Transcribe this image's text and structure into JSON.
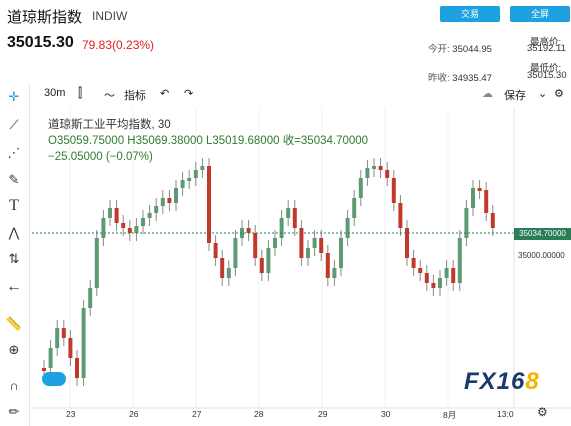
{
  "header": {
    "title": "道琼斯指数",
    "code": "INDIW",
    "trade_button": "交易",
    "fullscreen_button": "全屏",
    "price": "35015.30",
    "change": "79.83(0.23%)",
    "stats": {
      "open_label": "今开:",
      "open_value": "35044.95",
      "high_label": "最高价:",
      "high_value": "35192.11",
      "prev_label": "昨收:",
      "prev_value": "34935.47",
      "low_label": "最低价:",
      "low_value": "35015.30"
    }
  },
  "toolbar": {
    "interval": "30m",
    "indicators_label": "指标",
    "save_label": "保存"
  },
  "legend": {
    "name": "道琼斯工业平均指数",
    "interval": "30",
    "ohlc": "O35059.75000  H35069.38000  L35019.68000  收=35034.70000",
    "delta": "−25.05000 (−0.07%)"
  },
  "price_axis": {
    "current_tag": "35034.70000",
    "level_label": "35000.00000"
  },
  "x_axis": [
    "23",
    "26",
    "27",
    "28",
    "29",
    "30",
    "8月",
    "13:0"
  ],
  "logo_text": "FX168",
  "chart_data": {
    "type": "candlestick",
    "title": "道琼斯工业平均指数",
    "interval": "30",
    "current_price": 35034.7,
    "price_line_color": "#2a7d56",
    "up_color": "#5b9a73",
    "down_color": "#c0392b",
    "x_labels": [
      "23",
      "26",
      "27",
      "28",
      "29",
      "30",
      "8月",
      "13:0"
    ],
    "last_bar": {
      "open": 35059.75,
      "high": 35069.38,
      "low": 35019.68,
      "close": 35034.7,
      "change": -25.05,
      "change_pct": -0.07
    }
  }
}
